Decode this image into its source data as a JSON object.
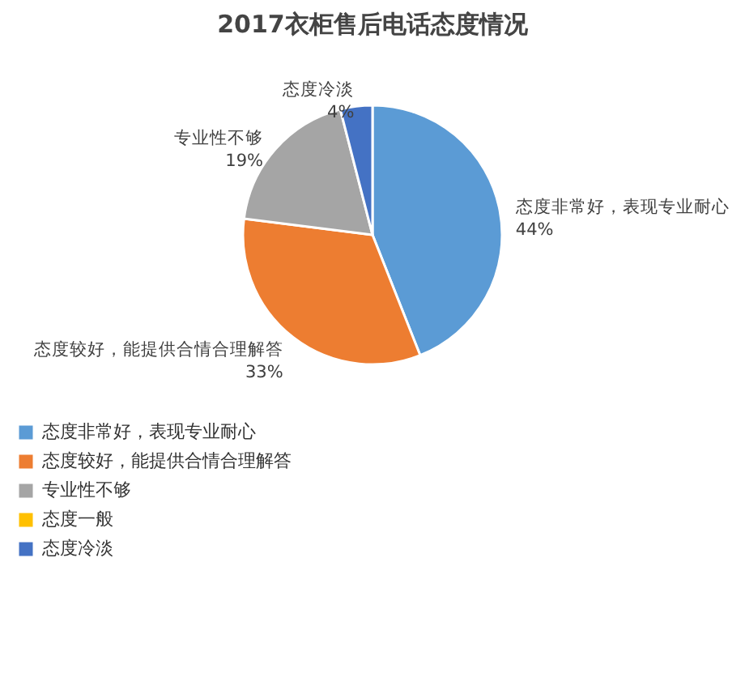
{
  "chart_data": {
    "type": "pie",
    "title": "2017衣柜售后电话态度情况",
    "categories": [
      "态度非常好，表现专业耐心",
      "态度较好，能提供合情合理解答",
      "专业性不够",
      "态度一般",
      "态度冷淡"
    ],
    "values": [
      44,
      33,
      19,
      0,
      4
    ],
    "value_labels": [
      "44%",
      "33%",
      "19%",
      null,
      "4%"
    ],
    "colors": [
      "#5b9bd5",
      "#ed7d31",
      "#a5a5a5",
      "#ffc000",
      "#4472c4"
    ],
    "legend": "bottom"
  }
}
